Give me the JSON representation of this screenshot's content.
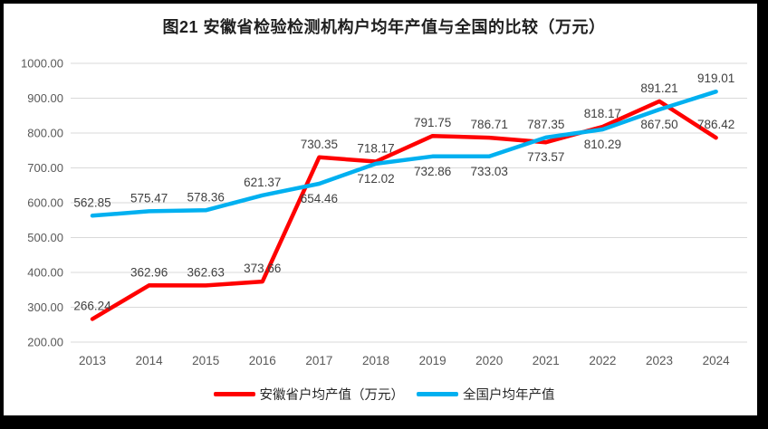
{
  "title": "图21 安徽省检验检测机构户均年产值与全国的比较（万元）",
  "chart_data": {
    "type": "line",
    "title": "图21 安徽省检验检测机构户均年产值与全国的比较（万元）",
    "categories": [
      "2013",
      "2014",
      "2015",
      "2016",
      "2017",
      "2018",
      "2019",
      "2020",
      "2021",
      "2022",
      "2023",
      "2024"
    ],
    "series": [
      {
        "name": "安徽省户均产值（万元）",
        "color": "#FF0000",
        "values": [
          266.24,
          362.96,
          362.63,
          373.66,
          730.35,
          718.17,
          791.75,
          786.71,
          773.57,
          818.17,
          891.21,
          786.42
        ],
        "label_positions": [
          "above",
          "above",
          "above",
          "above",
          "above",
          "above",
          "above",
          "above",
          "below",
          "above",
          "above",
          "above"
        ]
      },
      {
        "name": "全国户均年产值",
        "color": "#00B0F0",
        "values": [
          562.85,
          575.47,
          578.36,
          621.37,
          654.46,
          712.02,
          732.86,
          733.03,
          787.35,
          810.29,
          867.5,
          919.01
        ],
        "label_positions": [
          "above",
          "above",
          "above",
          "above",
          "below",
          "below",
          "below",
          "below",
          "above",
          "below",
          "below",
          "above"
        ]
      }
    ],
    "xlabel": "",
    "ylabel": "",
    "ylim": [
      200,
      1000
    ],
    "y_ticks": [
      "1000.00",
      "900.00",
      "800.00",
      "700.00",
      "600.00",
      "500.00",
      "400.00",
      "300.00",
      "200.00"
    ],
    "grid": true,
    "gridline_color": "#D9D9D9",
    "axis_text_color": "#595959",
    "data_label_color": "#404040",
    "legend_position": "bottom"
  },
  "legend": {
    "items": [
      {
        "label": "安徽省户均产值（万元）",
        "color": "#FF0000"
      },
      {
        "label": "全国户均年产值",
        "color": "#00B0F0"
      }
    ]
  }
}
